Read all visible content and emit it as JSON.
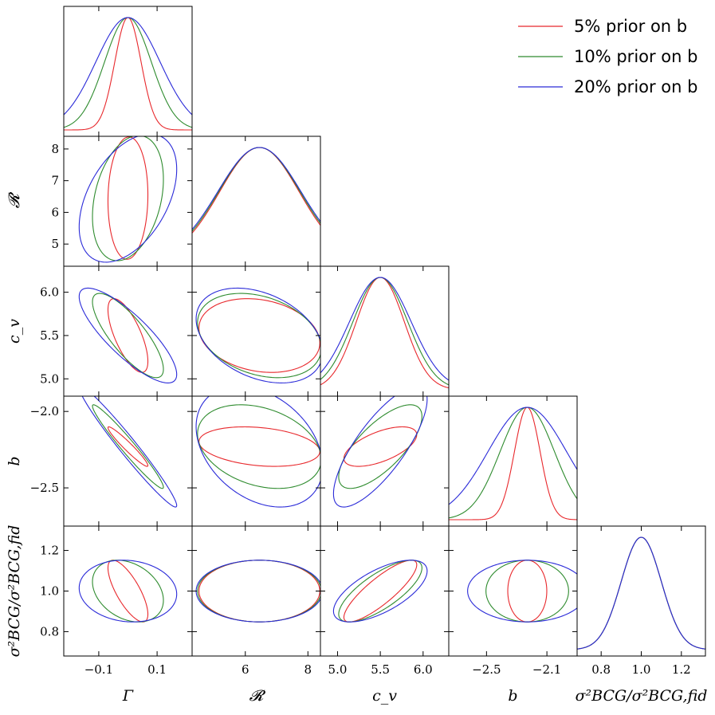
{
  "chart_data": {
    "type": "corner",
    "params": [
      {
        "key": "gamma",
        "label": "Γ",
        "range": [
          -0.22,
          0.22
        ],
        "ticks": [
          -0.1,
          0.1
        ],
        "tick_labels": [
          "−0.1",
          "0.1"
        ],
        "mean": 0.0,
        "sigma": {
          "p5": 0.045,
          "p10": 0.08,
          "p20": 0.11
        }
      },
      {
        "key": "R",
        "label": "𝓡",
        "range": [
          4.3,
          8.4
        ],
        "ticks": [
          6,
          8
        ],
        "tick_labels": [
          "6",
          "8"
        ],
        "ticks_y": [
          5,
          6,
          7,
          8
        ],
        "tick_labels_y": [
          "5",
          "6",
          "7",
          "8"
        ],
        "mean": 6.45,
        "sigma": {
          "p5": 1.27,
          "p10": 1.3,
          "p20": 1.33
        }
      },
      {
        "key": "cv",
        "label": "c_v",
        "range": [
          4.8,
          6.3
        ],
        "ticks": [
          5.0,
          5.5,
          6.0
        ],
        "tick_labels": [
          "5.0",
          "5.5",
          "6.0"
        ],
        "mean": 5.5,
        "sigma": {
          "p5": 0.28,
          "p10": 0.32,
          "p20": 0.36
        }
      },
      {
        "key": "b",
        "label": "b",
        "range": [
          -2.75,
          -1.9
        ],
        "ticks": [
          -2.5,
          -2.1
        ],
        "tick_labels": [
          "−2.5",
          "−2.1"
        ],
        "ticks_y": [
          -2.5,
          -2.0
        ],
        "tick_labels_y": [
          "−2.5",
          "−2.0"
        ],
        "mean": -2.23,
        "sigma": {
          "p5": 0.085,
          "p10": 0.18,
          "p20": 0.26
        }
      },
      {
        "key": "sigma",
        "label": "σ²BCG/σ²BCG,fid",
        "range": [
          0.68,
          1.32
        ],
        "ticks": [
          0.8,
          1.0,
          1.2
        ],
        "tick_labels": [
          "0.8",
          "1.0",
          "1.2"
        ],
        "mean": 1.0,
        "sigma": {
          "p5": 0.1,
          "p10": 0.1,
          "p20": 0.1
        }
      }
    ],
    "contours": [
      {
        "x": "gamma",
        "y": "R",
        "rho": {
          "p5": 0.05,
          "p10": 0.3,
          "p20": 0.45
        }
      },
      {
        "x": "gamma",
        "y": "cv",
        "rho": {
          "p5": -0.7,
          "p10": -0.8,
          "p20": -0.82
        }
      },
      {
        "x": "gamma",
        "y": "b",
        "rho": {
          "p5": -0.96,
          "p10": -0.97,
          "p20": -0.975
        }
      },
      {
        "x": "gamma",
        "y": "sigma",
        "rho": {
          "p5": -0.75,
          "p10": -0.3,
          "p20": -0.1
        }
      },
      {
        "x": "R",
        "y": "cv",
        "rho": {
          "p5": -0.2,
          "p10": -0.3,
          "p20": -0.35
        }
      },
      {
        "x": "R",
        "y": "b",
        "rho": {
          "p5": -0.25,
          "p10": -0.3,
          "p20": -0.33
        }
      },
      {
        "x": "R",
        "y": "sigma",
        "rho": {
          "p5": 0.0,
          "p10": 0.0,
          "p20": 0.0
        }
      },
      {
        "x": "cv",
        "y": "b",
        "rho": {
          "p5": 0.6,
          "p10": 0.72,
          "p20": 0.78
        }
      },
      {
        "x": "cv",
        "y": "sigma",
        "rho": {
          "p5": 0.85,
          "p10": 0.75,
          "p20": 0.65
        }
      },
      {
        "x": "b",
        "y": "sigma",
        "rho": {
          "p5": 0.0,
          "p10": 0.0,
          "p20": 0.0
        }
      }
    ],
    "series": [
      {
        "key": "p5",
        "name": "5% prior on b",
        "color": "#e8282c"
      },
      {
        "key": "p10",
        "name": "10% prior on b",
        "color": "#2e8b2e"
      },
      {
        "key": "p20",
        "name": "20% prior on b",
        "color": "#2a2ad8"
      }
    ],
    "legend_position": "top-right",
    "grid": false
  }
}
